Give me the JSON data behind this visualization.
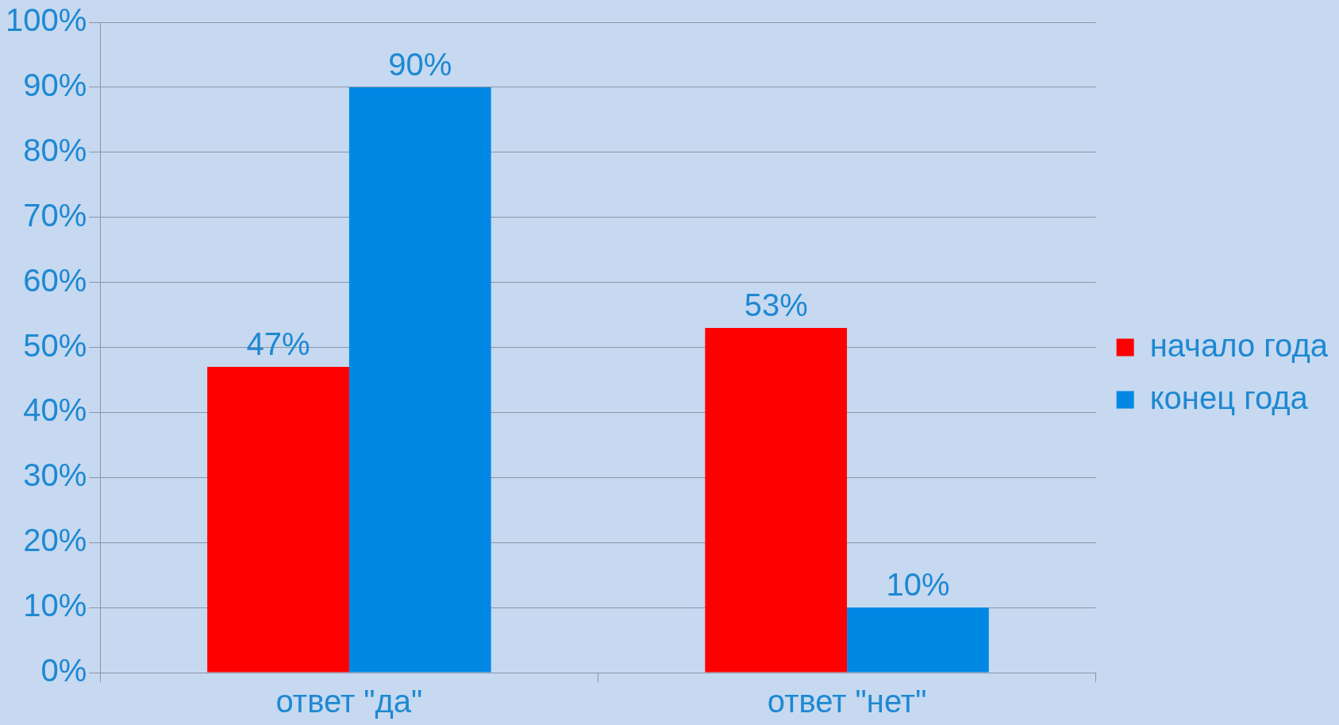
{
  "chart_data": {
    "type": "bar",
    "categories": [
      "ответ \"да\"",
      "ответ \"нет\""
    ],
    "series": [
      {
        "name": "начало года",
        "color": "#ff0000",
        "values": [
          47,
          53
        ],
        "value_labels": [
          "47%",
          "53%"
        ]
      },
      {
        "name": "конец года",
        "color": "#0088e4",
        "values": [
          90,
          10
        ],
        "value_labels": [
          "90%",
          "10%"
        ]
      }
    ],
    "ylim": [
      0,
      100
    ],
    "yticks": [
      {
        "value": 0,
        "label": "0%"
      },
      {
        "value": 10,
        "label": "10%"
      },
      {
        "value": 20,
        "label": "20%"
      },
      {
        "value": 30,
        "label": "30%"
      },
      {
        "value": 40,
        "label": "40%"
      },
      {
        "value": 50,
        "label": "50%"
      },
      {
        "value": 60,
        "label": "60%"
      },
      {
        "value": 70,
        "label": "70%"
      },
      {
        "value": 80,
        "label": "80%"
      },
      {
        "value": 90,
        "label": "90%"
      },
      {
        "value": 100,
        "label": "100%"
      }
    ],
    "grid": "y",
    "legend": "right"
  }
}
